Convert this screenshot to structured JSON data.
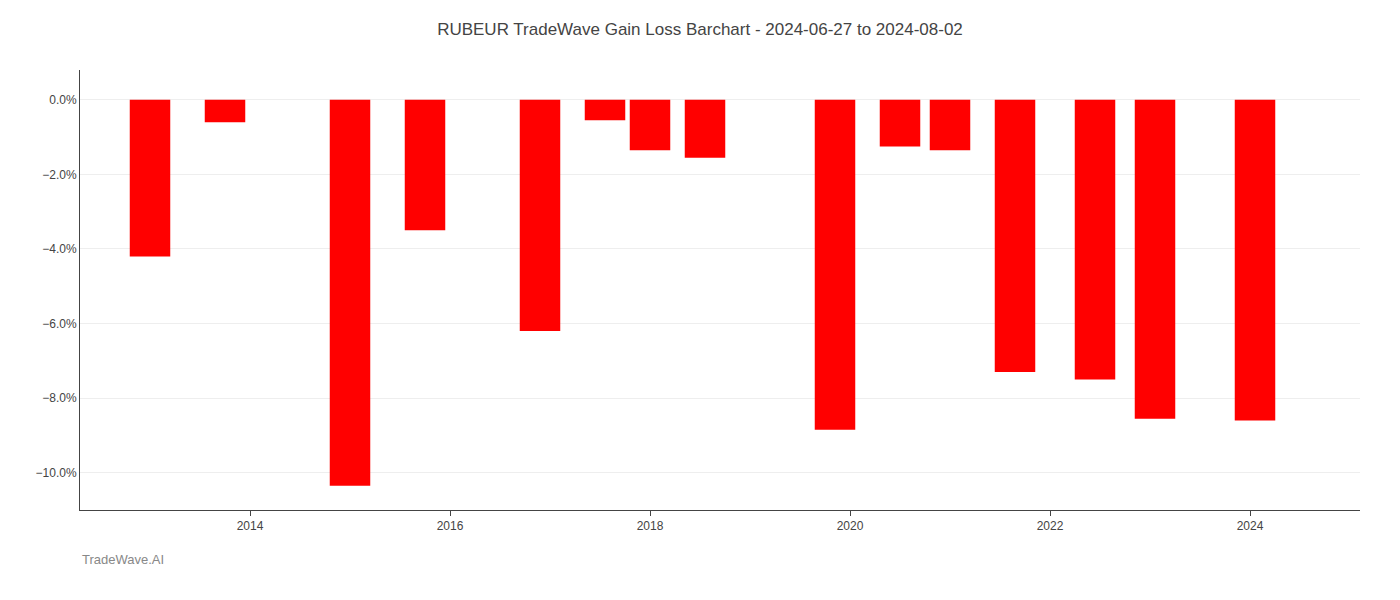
{
  "chart_data": {
    "type": "bar",
    "title": "RUBEUR TradeWave Gain Loss Barchart - 2024-06-27 to 2024-08-02",
    "annotations": [
      "TradeWave.AI"
    ],
    "x": [
      2013.0,
      2013.75,
      2015.0,
      2015.75,
      2016.9,
      2017.55,
      2018.0,
      2018.55,
      2019.85,
      2020.5,
      2021.0,
      2021.65,
      2022.45,
      2023.05,
      2024.05
    ],
    "values": [
      -4.2,
      -0.6,
      -10.35,
      -3.5,
      -6.2,
      -0.55,
      -1.35,
      -1.55,
      -8.85,
      -1.25,
      -1.35,
      -7.3,
      -7.5,
      -8.55,
      -8.6
    ],
    "color": "#ff0000",
    "xlim": [
      2012.3,
      2025.1
    ],
    "xticks": [
      2014,
      2016,
      2018,
      2020,
      2022,
      2024
    ],
    "ylim": [
      -11.0,
      0.8
    ],
    "yticks": [
      {
        "value": 0.0,
        "label": "0.0%"
      },
      {
        "value": -2.0,
        "label": "−2.0%"
      },
      {
        "value": -4.0,
        "label": "−4.0%"
      },
      {
        "value": -6.0,
        "label": "−6.0%"
      },
      {
        "value": -8.0,
        "label": "−8.0%"
      },
      {
        "value": -10.0,
        "label": "−10.0%"
      }
    ],
    "grid": true
  }
}
